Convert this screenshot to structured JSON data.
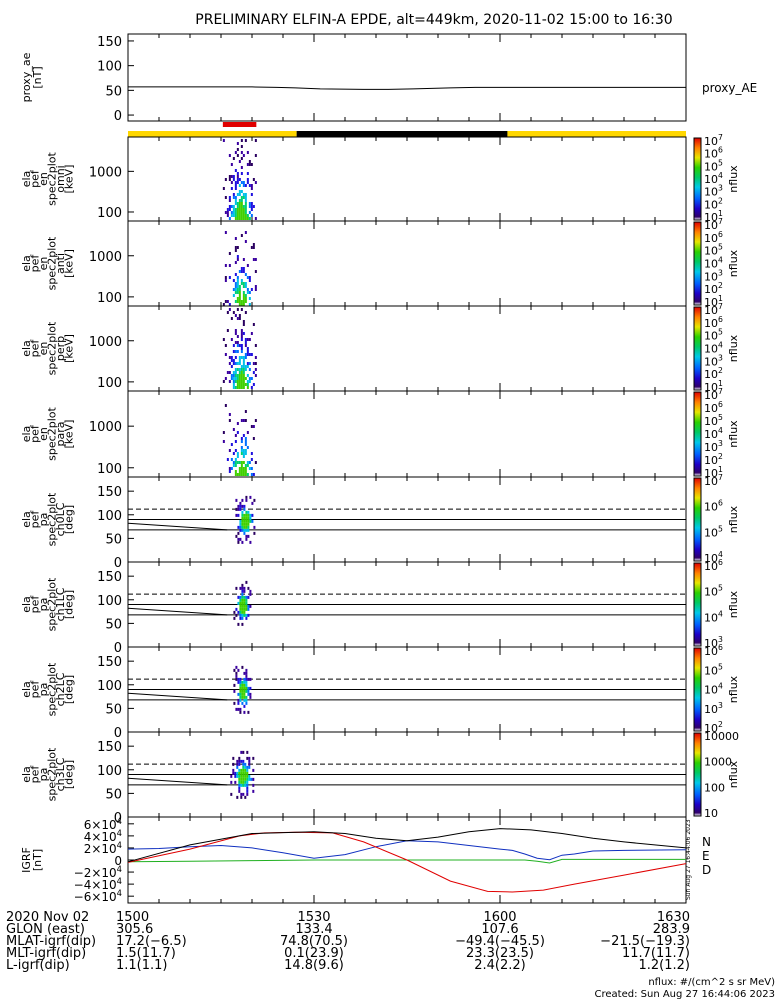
{
  "chart_data": {
    "type": "multi-panel spectrogram and line plots",
    "title": "PRELIMINARY ELFIN-A EPDE, alt=449km, 2020-11-02 15:00 to 16:30",
    "colors": {
      "red": "#e00000",
      "yellow": "#ffd700",
      "black": "#000000",
      "blue": "#1030c0",
      "green": "#20b020"
    },
    "time_range_hhmm": [
      "1500",
      "1630"
    ],
    "status_bar": {
      "segments": [
        {
          "from_min": 0,
          "to_min": 27.2,
          "color": "yellow"
        },
        {
          "from_min": 27.2,
          "to_min": 61.2,
          "color": "black"
        },
        {
          "from_min": 61.2,
          "to_min": 90,
          "color": "yellow"
        }
      ],
      "science_zone": {
        "from_min": 15.3,
        "to_min": 20.7,
        "color": "red"
      }
    },
    "panels": [
      {
        "id": "proxy_ae",
        "type": "line",
        "ylabel": [
          "proxy_ae",
          "[nT]"
        ],
        "legend": "proxy_AE",
        "ylim": [
          -10,
          160
        ],
        "yticks": [
          "0",
          "50",
          "100",
          "150"
        ],
        "x_min": [
          0,
          10,
          20,
          24,
          27,
          31,
          38,
          42,
          46,
          52,
          56,
          60,
          70,
          80,
          90
        ],
        "y": [
          57,
          57,
          57,
          56,
          55,
          53,
          52,
          52,
          53,
          55,
          56,
          56,
          56,
          56,
          56
        ]
      },
      {
        "id": "en_omni",
        "type": "spectrogram",
        "ylabel": [
          "ela",
          "pef",
          "en",
          "spec2plot",
          "omni",
          "[keV]"
        ],
        "yticks": [
          "100",
          "1000"
        ],
        "cbar_ticks": [
          "10",
          "10",
          "10",
          "10",
          "10",
          "10",
          "10"
        ],
        "cbar_exps": [
          "1",
          "2",
          "3",
          "4",
          "5",
          "6",
          "7"
        ],
        "cbar_label": "nflux",
        "burst": {
          "from_min": 15.3,
          "to_min": 20.7,
          "style": "full"
        }
      },
      {
        "id": "en_anti",
        "type": "spectrogram",
        "ylabel": [
          "ela",
          "pef",
          "en",
          "spec2plot",
          "anti",
          "[keV]"
        ],
        "yticks": [
          "100",
          "1000"
        ],
        "cbar_ticks": [
          "10",
          "10",
          "10",
          "10",
          "10",
          "10",
          "10"
        ],
        "cbar_exps": [
          "1",
          "2",
          "3",
          "4",
          "5",
          "6",
          "7"
        ],
        "cbar_label": "nflux",
        "burst": {
          "from_min": 15.3,
          "to_min": 20.7,
          "style": "thin"
        }
      },
      {
        "id": "en_perp",
        "type": "spectrogram",
        "ylabel": [
          "ela",
          "pef",
          "en",
          "spec2plot",
          "perp",
          "[keV]"
        ],
        "yticks": [
          "100",
          "1000"
        ],
        "cbar_ticks": [
          "10",
          "10",
          "10",
          "10",
          "10",
          "10",
          "10"
        ],
        "cbar_exps": [
          "1",
          "2",
          "3",
          "4",
          "5",
          "6",
          "7"
        ],
        "cbar_label": "nflux",
        "burst": {
          "from_min": 15.3,
          "to_min": 20.7,
          "style": "full"
        }
      },
      {
        "id": "en_para",
        "type": "spectrogram",
        "ylabel": [
          "ela",
          "pef",
          "en",
          "spec2plot",
          "para",
          "[keV]"
        ],
        "yticks": [
          "100",
          "1000"
        ],
        "cbar_ticks": [
          "10",
          "10",
          "10",
          "10",
          "10",
          "10",
          "10"
        ],
        "cbar_exps": [
          "1",
          "2",
          "3",
          "4",
          "5",
          "6",
          "7"
        ],
        "cbar_label": "nflux",
        "burst": {
          "from_min": 15.3,
          "to_min": 20.7,
          "style": "thin"
        }
      },
      {
        "id": "pa_ch0",
        "type": "spectrogram",
        "ylabel": [
          "ela",
          "pef",
          "pa",
          "spec2plot",
          "ch0LC",
          "[deg]"
        ],
        "ylim": [
          0,
          180
        ],
        "yticks": [
          "0",
          "50",
          "100",
          "150"
        ],
        "cbar_ticks": [
          "10",
          "10",
          "10",
          "10"
        ],
        "cbar_exps": [
          "4",
          "5",
          "6",
          "7"
        ],
        "cbar_label": "nflux",
        "burst": {
          "from_min": 17.0,
          "to_min": 20.5,
          "style": "pa"
        }
      },
      {
        "id": "pa_ch1",
        "type": "spectrogram",
        "ylabel": [
          "ela",
          "pef",
          "pa",
          "spec2plot",
          "ch1LC",
          "[deg]"
        ],
        "ylim": [
          0,
          180
        ],
        "yticks": [
          "0",
          "50",
          "100",
          "150"
        ],
        "cbar_ticks": [
          "10",
          "10",
          "10",
          "10"
        ],
        "cbar_exps": [
          "3",
          "4",
          "5",
          "6"
        ],
        "cbar_label": "nflux",
        "burst": {
          "from_min": 17.0,
          "to_min": 20.0,
          "style": "pa"
        }
      },
      {
        "id": "pa_ch2",
        "type": "spectrogram",
        "ylabel": [
          "ela",
          "pef",
          "pa",
          "spec2plot",
          "ch2LC",
          "[deg]"
        ],
        "ylim": [
          0,
          180
        ],
        "yticks": [
          "0",
          "50",
          "100",
          "150"
        ],
        "cbar_ticks": [
          "10",
          "10",
          "10",
          "10",
          "10"
        ],
        "cbar_exps": [
          "2",
          "3",
          "4",
          "5",
          "6"
        ],
        "cbar_label": "nflux",
        "burst": {
          "from_min": 17.0,
          "to_min": 20.0,
          "style": "pa"
        }
      },
      {
        "id": "pa_ch3",
        "type": "spectrogram",
        "ylabel": [
          "ela",
          "pef",
          "pa",
          "spec2plot",
          "ch3LC",
          "[deg]"
        ],
        "ylim": [
          0,
          180
        ],
        "yticks": [
          "0",
          "50",
          "100",
          "150"
        ],
        "cbar_ticks": [
          "10",
          "100",
          "1000",
          "10000"
        ],
        "cbar_exps": [
          "",
          "",
          "",
          ""
        ],
        "cbar_label": "nflux",
        "burst": {
          "from_min": 16.5,
          "to_min": 20.5,
          "style": "pa"
        }
      },
      {
        "id": "igrf",
        "type": "line",
        "ylabel": [
          "IGRF",
          "[nT]"
        ],
        "ylim": [
          -68000,
          68000
        ],
        "yticks": [
          "6×10",
          "4×10",
          "2×10",
          "0",
          "−2×10",
          "−4×10",
          "−6×10"
        ],
        "ytick_exps": [
          "4",
          "4",
          "4",
          "",
          "4",
          "4",
          "4"
        ],
        "legend": [
          "N",
          "E",
          "D"
        ],
        "series": [
          {
            "name": "N",
            "color": "blue",
            "x_min": [
              0,
              5,
              10,
              15,
              20,
              25,
              30,
              35,
              40,
              45,
              50,
              55,
              60,
              62,
              64,
              66,
              68,
              70,
              72,
              75,
              80,
              90
            ],
            "y": [
              18000,
              19000,
              22000,
              24000,
              20000,
              12000,
              3000,
              9000,
              22000,
              32000,
              30000,
              24000,
              18000,
              16000,
              10000,
              3000,
              500,
              8000,
              10000,
              15000,
              16000,
              17000
            ]
          },
          {
            "name": "E",
            "color": "green",
            "x_min": [
              0,
              10,
              20,
              30,
              40,
              50,
              60,
              62,
              64,
              66,
              68,
              70,
              90
            ],
            "y": [
              -3000,
              -2000,
              -1000,
              0,
              0,
              0,
              0,
              0,
              0,
              -2000,
              -5000,
              1000,
              1000
            ]
          },
          {
            "name": "D",
            "color": "red",
            "x_min": [
              0,
              10,
              18,
              22,
              27,
              33,
              38,
              45,
              52,
              58,
              62,
              67,
              72,
              80,
              90
            ],
            "y": [
              -4000,
              18000,
              40000,
              45000,
              46000,
              45000,
              30000,
              0,
              -35000,
              -52000,
              -53000,
              -50000,
              -40000,
              -25000,
              -6000
            ]
          },
          {
            "name": "total",
            "color": "black",
            "x_min": [
              0,
              10,
              20,
              30,
              35,
              40,
              45,
              50,
              55,
              60,
              65,
              70,
              75,
              80,
              90
            ],
            "y": [
              -3000,
              25000,
              44000,
              47000,
              44000,
              36000,
              32000,
              38000,
              47000,
              52000,
              50000,
              44000,
              36000,
              30000,
              20000
            ]
          }
        ]
      }
    ],
    "timestamp_note": "Sun Aug 27 16:44:06 2023",
    "ephemeris": {
      "rows": [
        {
          "label": "2020 Nov 02",
          "values": [
            "1500",
            "1530",
            "1600",
            "1630"
          ]
        },
        {
          "label": "GLON (east)",
          "values": [
            "305.6",
            "133.4",
            "107.6",
            "283.9"
          ]
        },
        {
          "label": "MLAT-igrf(dip)",
          "values": [
            "17.2(−6.5)",
            "74.8(70.5)",
            "−49.4(−45.5)",
            "−21.5(−19.3)"
          ]
        },
        {
          "label": "MLT-igrf(dip)",
          "values": [
            "1.5(11.7)",
            "0.1(23.9)",
            "23.3(23.5)",
            "11.7(11.7)"
          ]
        },
        {
          "label": "L-igrf(dip)",
          "values": [
            "1.1(1.1)",
            "14.8(9.6)",
            "2.4(2.2)",
            "1.2(1.2)"
          ]
        }
      ]
    },
    "footer": {
      "units": "nflux: #/(cm^2 s sr MeV)",
      "created": "Created: Sun Aug 27 16:44:06 2023"
    }
  }
}
